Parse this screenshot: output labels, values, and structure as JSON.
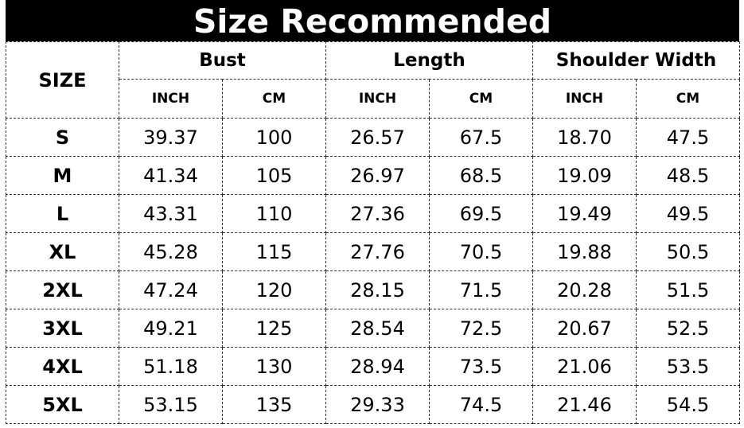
{
  "title": "Size Recommended",
  "header": {
    "size": "SIZE",
    "groups": [
      "Bust",
      "Length",
      "Shoulder Width"
    ],
    "units": [
      "INCH",
      "CM",
      "INCH",
      "CM",
      "INCH",
      "CM"
    ]
  },
  "rows": [
    [
      "S",
      "39.37",
      "100",
      "26.57",
      "67.5",
      "18.70",
      "47.5"
    ],
    [
      "M",
      "41.34",
      "105",
      "26.97",
      "68.5",
      "19.09",
      "48.5"
    ],
    [
      "L",
      "43.31",
      "110",
      "27.36",
      "69.5",
      "19.49",
      "49.5"
    ],
    [
      "XL",
      "45.28",
      "115",
      "27.76",
      "70.5",
      "19.88",
      "50.5"
    ],
    [
      "2XL",
      "47.24",
      "120",
      "28.15",
      "71.5",
      "20.28",
      "51.5"
    ],
    [
      "3XL",
      "49.21",
      "125",
      "28.54",
      "72.5",
      "20.67",
      "52.5"
    ],
    [
      "4XL",
      "51.18",
      "130",
      "28.94",
      "73.5",
      "21.06",
      "53.5"
    ],
    [
      "5XL",
      "53.15",
      "135",
      "29.33",
      "74.5",
      "21.46",
      "54.5"
    ]
  ]
}
